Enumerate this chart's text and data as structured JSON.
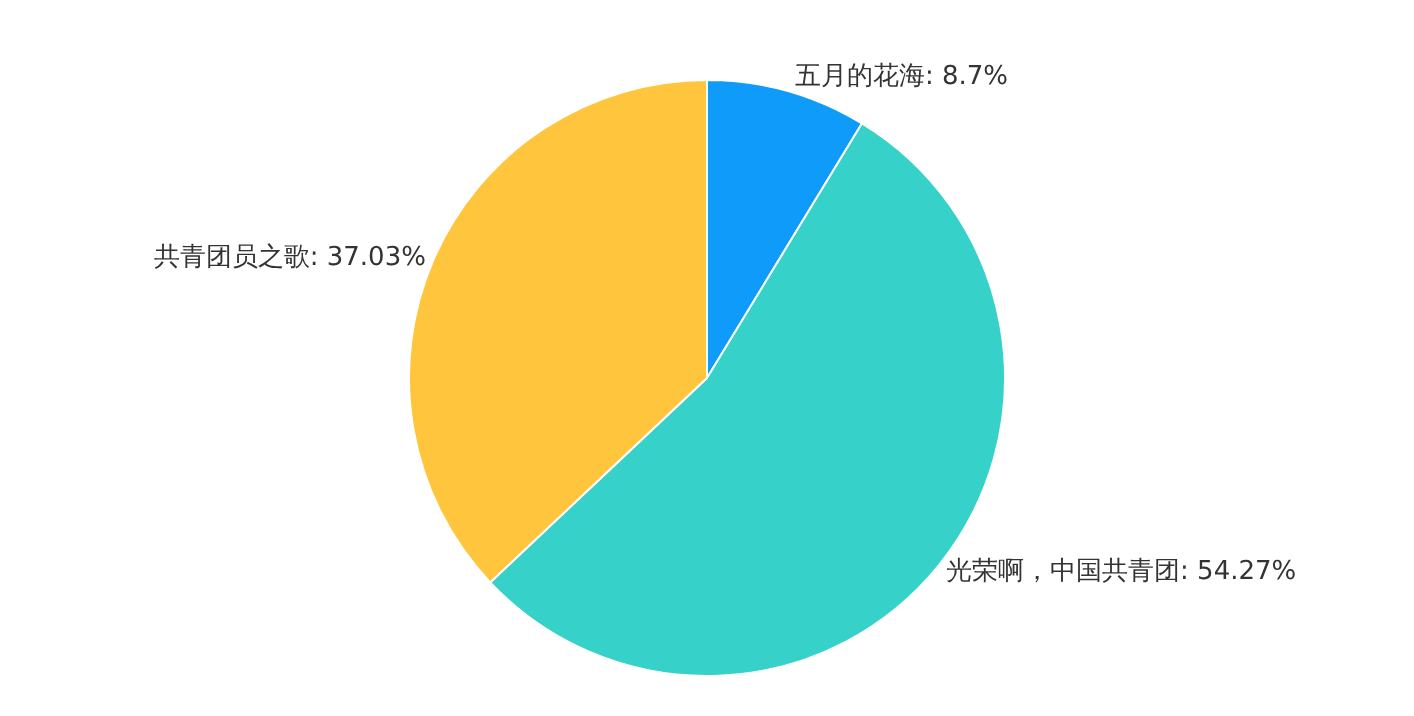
{
  "chart_data": {
    "type": "pie",
    "categories": [
      "五月的花海",
      "光荣啊，中国共青团",
      "共青团员之歌"
    ],
    "values": [
      8.7,
      54.27,
      37.03
    ],
    "value_labels": [
      "8.7%",
      "54.27%",
      "37.03%"
    ],
    "colors": [
      "#0f9bfa",
      "#36d1c9",
      "#ffc53d"
    ],
    "legend": false
  }
}
